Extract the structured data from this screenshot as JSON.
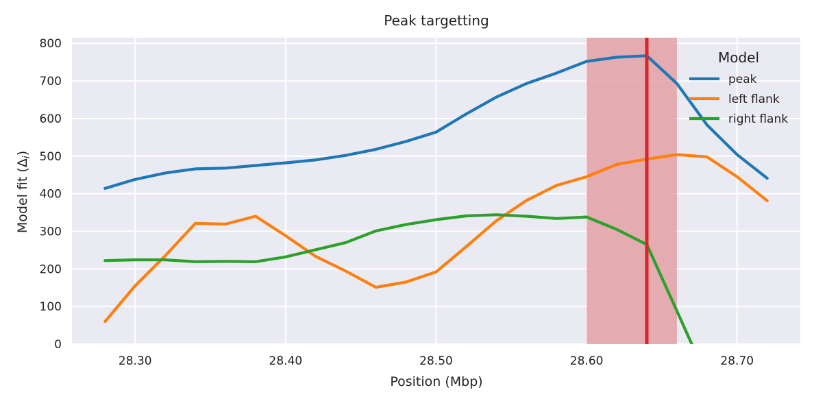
{
  "chart_data": {
    "type": "line",
    "title": "Peak targetting",
    "xlabel": "Position (Mbp)",
    "ylabel": "Model fit (Δ",
    "ylabel_sub": "i",
    "ylabel_close": ")",
    "xlim": [
      28.258,
      28.742
    ],
    "ylim": [
      0,
      815
    ],
    "x_ticks": [
      28.3,
      28.4,
      28.5,
      28.6,
      28.7
    ],
    "x_tick_labels": [
      "28.30",
      "28.40",
      "28.50",
      "28.60",
      "28.70"
    ],
    "y_ticks": [
      0,
      100,
      200,
      300,
      400,
      500,
      600,
      700,
      800
    ],
    "y_tick_labels": [
      "0",
      "100",
      "200",
      "300",
      "400",
      "500",
      "600",
      "700",
      "800"
    ],
    "grid": true,
    "legend": {
      "title": "Model",
      "placement": "top-right"
    },
    "highlight_span": {
      "x_start": 28.6,
      "x_end": 28.66,
      "color": "#e3a0a6"
    },
    "vertical_line": {
      "x": 28.64,
      "color": "#d62728"
    },
    "series": [
      {
        "name": "peak",
        "color": "#1f77b4",
        "x": [
          28.28,
          28.3,
          28.32,
          28.34,
          28.36,
          28.38,
          28.4,
          28.42,
          28.44,
          28.46,
          28.48,
          28.5,
          28.52,
          28.54,
          28.56,
          28.58,
          28.6,
          28.62,
          28.64,
          28.66,
          28.68,
          28.7,
          28.72
        ],
        "y": [
          414,
          438,
          455,
          466,
          468,
          475,
          482,
          490,
          502,
          518,
          539,
          564,
          612,
          657,
          693,
          721,
          752,
          763,
          767,
          693,
          583,
          504,
          441
        ]
      },
      {
        "name": "left flank",
        "color": "#ff7f0e",
        "x": [
          28.28,
          28.3,
          28.32,
          28.34,
          28.36,
          28.38,
          28.4,
          28.42,
          28.44,
          28.46,
          28.48,
          28.5,
          28.52,
          28.54,
          28.56,
          28.58,
          28.6,
          28.62,
          28.64,
          28.66,
          28.68,
          28.7,
          28.72
        ],
        "y": [
          60,
          155,
          235,
          321,
          319,
          340,
          288,
          233,
          194,
          151,
          165,
          192,
          259,
          328,
          382,
          422,
          445,
          478,
          492,
          504,
          498,
          445,
          381
        ]
      },
      {
        "name": "right flank",
        "color": "#2ca02c",
        "x": [
          28.28,
          28.3,
          28.32,
          28.34,
          28.36,
          28.38,
          28.4,
          28.42,
          28.44,
          28.46,
          28.48,
          28.5,
          28.52,
          28.54,
          28.56,
          28.58,
          28.6,
          28.62,
          28.64,
          28.66,
          28.68
        ],
        "y": [
          222,
          224,
          224,
          219,
          220,
          219,
          232,
          251,
          270,
          301,
          318,
          331,
          341,
          344,
          340,
          334,
          338,
          305,
          265,
          88,
          -90
        ]
      }
    ]
  }
}
